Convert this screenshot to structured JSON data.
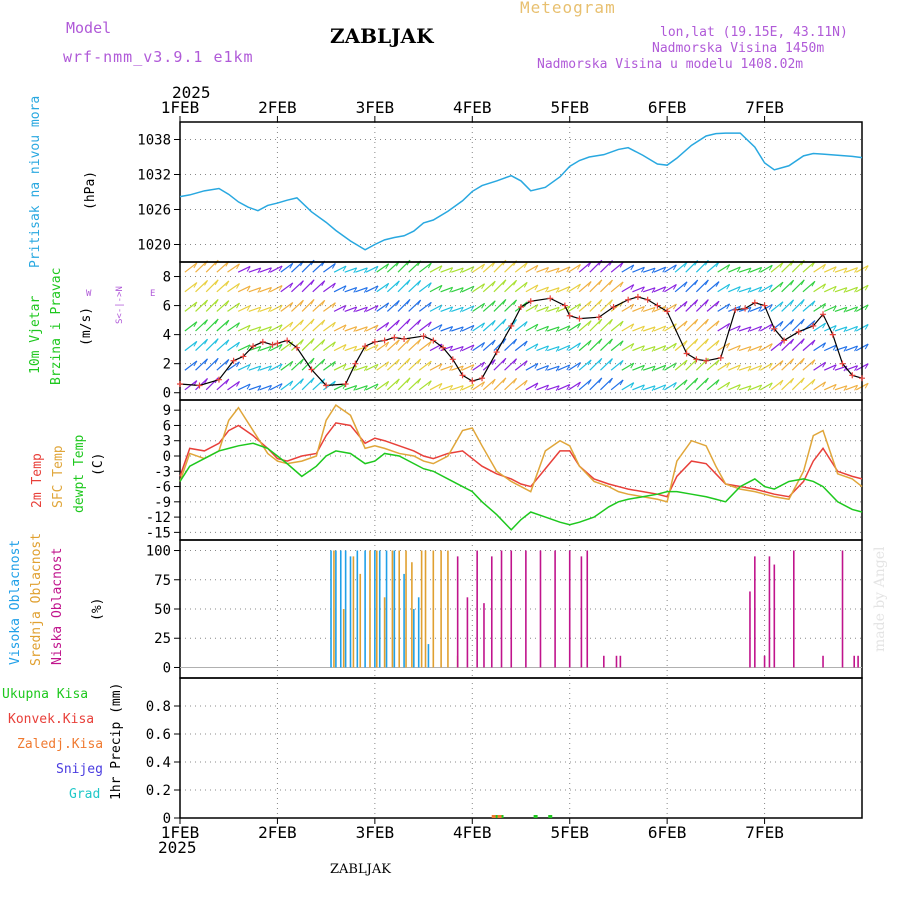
{
  "header": {
    "model_label": "Model",
    "model_name": "wrf-nmm_v3.9.1 e1km",
    "station": "ZABLJAK",
    "meteogram": "Meteogram",
    "lonlat": "lon,lat (19.15E, 43.11N)",
    "altitude": "Nadmorska Visina 1450m",
    "model_altitude": "Nadmorska Visina u modelu 1408.02m",
    "year": "2025",
    "footer_station": "ZABLJAK",
    "watermark": "made by Angel"
  },
  "colors": {
    "pressure": "#29a8e0",
    "temp2m": "#e8403a",
    "sfc": "#e0a63a",
    "dew": "#1ec81e",
    "high_cloud": "#20a0e8",
    "mid_cloud": "#e0a030",
    "low_cloud": "#c0148c",
    "purple_label": "#b05ad8",
    "meteogram_label": "#e8c070"
  },
  "panels": {
    "pressure": {
      "label": "Pritisak na nivou mora",
      "unit": "(hPa)",
      "yticks": [
        "1038",
        "1032",
        "1026",
        "1020"
      ]
    },
    "wind": {
      "label1": "10m Vjetar",
      "label2": "Brzina i Pravac",
      "unit": "(m/s)",
      "compass_ns": "S<-|->N",
      "compass_w": "W",
      "compass_e": "E",
      "yticks": [
        "8",
        "6",
        "4",
        "2",
        "0"
      ]
    },
    "temp": {
      "label1": "2m Temp",
      "label2": "SFC Temp",
      "label3": "dewpt Temp",
      "unit": "(C)",
      "yticks": [
        "9",
        "6",
        "3",
        "0",
        "-3",
        "-6",
        "-9",
        "-12",
        "-15"
      ]
    },
    "cloud": {
      "label1": "Visoka Oblacnost",
      "label2": "Srednja Oblacnost",
      "label3": "Niska Oblacnost",
      "unit": "(%)",
      "yticks": [
        "100",
        "75",
        "50",
        "25",
        "0"
      ]
    },
    "precip": {
      "legend": [
        "Ukupna Kisa",
        "Konvek.Kisa",
        "Zaledj.Kisa",
        "Snijeg",
        "Grad"
      ],
      "ylabel": "1hr Precip (mm)",
      "yticks": [
        "0.8",
        "0.6",
        "0.4",
        "0.2",
        "0"
      ]
    }
  },
  "x_axis": {
    "ticks": [
      "1FEB",
      "2FEB",
      "3FEB",
      "4FEB",
      "5FEB",
      "6FEB",
      "7FEB"
    ]
  },
  "chart_data": [
    {
      "type": "line",
      "title": "",
      "ylabel": "Pritisak na nivou mora (hPa)",
      "ylim": [
        1017,
        1041
      ],
      "x_unit": "days since 1FEB",
      "series": [
        {
          "name": "Pritisak na nivou mora",
          "x": [
            0,
            0.1,
            0.25,
            0.4,
            0.5,
            0.6,
            0.7,
            0.8,
            0.9,
            1.0,
            1.1,
            1.2,
            1.35,
            1.5,
            1.6,
            1.75,
            1.9,
            2.0,
            2.1,
            2.2,
            2.3,
            2.4,
            2.5,
            2.6,
            2.75,
            2.9,
            3.0,
            3.1,
            3.25,
            3.4,
            3.5,
            3.6,
            3.75,
            3.9,
            4.0,
            4.1,
            4.2,
            4.35,
            4.5,
            4.6,
            4.75,
            4.9,
            5.0,
            5.1,
            5.25,
            5.4,
            5.5,
            5.6,
            5.75,
            5.9,
            6.0,
            6.1,
            6.25,
            6.4,
            6.5,
            6.6,
            6.75,
            6.9,
            7.0
          ],
          "y": [
            1028.2,
            1028.5,
            1029.2,
            1029.6,
            1028.6,
            1027.3,
            1026.4,
            1025.8,
            1026.7,
            1027.1,
            1027.6,
            1028.0,
            1025.6,
            1023.8,
            1022.4,
            1020.6,
            1019.1,
            1020.0,
            1020.8,
            1021.2,
            1021.5,
            1022.3,
            1023.7,
            1024.2,
            1025.7,
            1027.5,
            1029.1,
            1030.1,
            1030.9,
            1031.8,
            1030.9,
            1029.2,
            1029.8,
            1031.6,
            1033.4,
            1034.4,
            1035.0,
            1035.4,
            1036.3,
            1036.6,
            1035.3,
            1033.8,
            1033.6,
            1034.8,
            1037.0,
            1038.6,
            1039.0,
            1039.1,
            1039.1,
            1036.7,
            1034.0,
            1032.8,
            1033.5,
            1035.2,
            1035.6,
            1035.5,
            1035.3,
            1035.1,
            1034.9
          ]
        }
      ]
    },
    {
      "type": "line",
      "title": "",
      "ylabel": "10m Vjetar Brzina i Pravac (m/s)",
      "ylim": [
        -0.5,
        9
      ],
      "x_unit": "days since 1FEB",
      "series": [
        {
          "name": "10m Vjetar",
          "x": [
            0,
            0.2,
            0.4,
            0.55,
            0.65,
            0.75,
            0.85,
            0.95,
            1.0,
            1.1,
            1.2,
            1.35,
            1.5,
            1.7,
            1.8,
            1.9,
            2.0,
            2.1,
            2.2,
            2.3,
            2.5,
            2.6,
            2.7,
            2.8,
            2.9,
            3.0,
            3.1,
            3.25,
            3.4,
            3.5,
            3.6,
            3.8,
            3.95,
            4.0,
            4.1,
            4.3,
            4.45,
            4.6,
            4.7,
            4.8,
            4.9,
            5.0,
            5.2,
            5.3,
            5.4,
            5.55,
            5.7,
            5.8,
            5.9,
            6.0,
            6.1,
            6.2,
            6.35,
            6.5,
            6.6,
            6.7,
            6.8,
            6.9,
            7.0
          ],
          "y": [
            0.6,
            0.5,
            0.9,
            2.2,
            2.5,
            3.2,
            3.5,
            3.3,
            3.4,
            3.6,
            3.1,
            1.6,
            0.5,
            0.6,
            2.0,
            3.2,
            3.5,
            3.6,
            3.8,
            3.7,
            3.9,
            3.6,
            3.1,
            2.3,
            1.2,
            0.8,
            1.0,
            2.8,
            4.6,
            5.9,
            6.3,
            6.5,
            6.0,
            5.3,
            5.1,
            5.2,
            5.9,
            6.4,
            6.6,
            6.4,
            6.0,
            5.6,
            2.7,
            2.3,
            2.2,
            2.4,
            5.7,
            5.8,
            6.2,
            6.0,
            4.4,
            3.6,
            4.2,
            4.6,
            5.4,
            4.0,
            2.0,
            1.2,
            1.0
          ]
        }
      ]
    },
    {
      "type": "line",
      "title": "",
      "ylabel": "Temp (C)",
      "ylim": [
        -16.5,
        11
      ],
      "x_unit": "days since 1FEB",
      "x": [
        0,
        0.1,
        0.25,
        0.4,
        0.5,
        0.6,
        0.75,
        0.9,
        1.0,
        1.1,
        1.25,
        1.4,
        1.5,
        1.6,
        1.75,
        1.9,
        2.0,
        2.1,
        2.25,
        2.4,
        2.5,
        2.6,
        2.75,
        2.9,
        3.0,
        3.1,
        3.25,
        3.4,
        3.5,
        3.6,
        3.75,
        3.9,
        4.0,
        4.1,
        4.25,
        4.4,
        4.5,
        4.6,
        4.75,
        4.9,
        5.0,
        5.1,
        5.25,
        5.4,
        5.5,
        5.6,
        5.75,
        5.9,
        6.0,
        6.1,
        6.25,
        6.4,
        6.5,
        6.6,
        6.75,
        6.9,
        7.0
      ],
      "series": [
        {
          "name": "2m Temp",
          "y": [
            -4.0,
            1.5,
            1.0,
            2.5,
            5.0,
            6.0,
            4.0,
            1.5,
            -0.5,
            -1.0,
            0.0,
            0.5,
            4.0,
            6.5,
            6.0,
            2.5,
            3.5,
            3.0,
            2.0,
            1.0,
            0.0,
            -0.5,
            0.5,
            1.0,
            -0.5,
            -2.0,
            -3.5,
            -4.5,
            -5.5,
            -6.0,
            -2.5,
            1.0,
            1.0,
            -2.0,
            -4.5,
            -5.5,
            -6.0,
            -6.5,
            -7.0,
            -7.5,
            -8.0,
            -4.0,
            -1.0,
            -1.5,
            -3.5,
            -5.5,
            -6.0,
            -6.5,
            -7.0,
            -7.5,
            -8.0,
            -5.0,
            -1.0,
            1.5,
            -3.0,
            -4.0,
            -4.5
          ]
        },
        {
          "name": "SFC Temp",
          "y": [
            -5.0,
            0.5,
            -0.5,
            1.0,
            7.0,
            9.5,
            5.0,
            0.5,
            -1.0,
            -1.5,
            -1.0,
            0.0,
            7.0,
            10.0,
            8.0,
            1.5,
            2.0,
            1.5,
            0.5,
            0.0,
            -1.0,
            -1.5,
            0.0,
            5.0,
            5.5,
            2.0,
            -3.0,
            -5.0,
            -6.0,
            -7.0,
            1.0,
            3.0,
            2.0,
            -2.0,
            -5.0,
            -6.0,
            -7.0,
            -7.5,
            -8.0,
            -8.5,
            -9.0,
            -1.0,
            3.0,
            2.0,
            -2.0,
            -5.5,
            -6.5,
            -7.0,
            -7.5,
            -8.0,
            -8.5,
            -3.0,
            4.0,
            5.0,
            -3.5,
            -4.5,
            -6.0
          ]
        },
        {
          "name": "dewpt Temp",
          "y": [
            -5.0,
            -2.0,
            -0.5,
            1.0,
            1.5,
            2.0,
            2.5,
            1.5,
            0.0,
            -1.5,
            -4.0,
            -2.0,
            0.0,
            1.0,
            0.5,
            -1.5,
            -1.0,
            0.5,
            0.0,
            -1.5,
            -2.5,
            -3.0,
            -4.5,
            -6.0,
            -7.0,
            -9.0,
            -11.5,
            -14.5,
            -12.5,
            -11.0,
            -12.0,
            -13.0,
            -13.5,
            -13.0,
            -12.0,
            -10.0,
            -9.0,
            -8.5,
            -8.0,
            -7.5,
            -7.0,
            -7.0,
            -7.5,
            -8.0,
            -8.5,
            -9.0,
            -6.0,
            -4.5,
            -6.0,
            -6.5,
            -5.0,
            -4.5,
            -5.0,
            -6.0,
            -9.0,
            -10.5,
            -11.0
          ]
        }
      ]
    },
    {
      "type": "bar",
      "title": "",
      "ylabel": "Oblacnost (%)",
      "ylim": [
        0,
        100
      ],
      "x_unit": "days since 1FEB",
      "series": [
        {
          "name": "Visoka Oblacnost",
          "x": [
            1.55,
            1.6,
            1.65,
            1.7,
            1.75,
            1.82,
            1.9,
            2.0,
            2.05,
            2.12,
            2.2,
            2.3,
            2.4,
            2.45,
            2.55
          ],
          "y": [
            100,
            100,
            100,
            100,
            95,
            100,
            100,
            100,
            100,
            100,
            100,
            80,
            50,
            60,
            20
          ]
        },
        {
          "name": "Srednja Oblacnost",
          "x": [
            1.58,
            1.68,
            1.78,
            1.85,
            1.95,
            2.02,
            2.1,
            2.18,
            2.25,
            2.32,
            2.38,
            2.48,
            2.52,
            2.6,
            2.68,
            2.75,
            2.85
          ],
          "y": [
            100,
            50,
            95,
            80,
            100,
            100,
            60,
            100,
            100,
            100,
            90,
            100,
            100,
            100,
            100,
            100,
            10
          ]
        },
        {
          "name": "Niska Oblacnost",
          "x": [
            2.85,
            2.95,
            3.05,
            3.12,
            3.2,
            3.3,
            3.4,
            3.55,
            3.7,
            3.85,
            4.0,
            4.12,
            4.18,
            4.35,
            4.48,
            4.52,
            5.85,
            5.9,
            6.0,
            6.05,
            6.1,
            6.3,
            6.6,
            6.8,
            6.92,
            6.96
          ],
          "y": [
            95,
            60,
            100,
            55,
            95,
            100,
            100,
            100,
            100,
            100,
            100,
            95,
            100,
            10,
            10,
            10,
            65,
            95,
            10,
            95,
            88,
            100,
            10,
            100,
            10,
            10
          ]
        }
      ]
    },
    {
      "type": "bar",
      "title": "",
      "ylabel": "1hr Precip (mm)",
      "ylim": [
        0,
        1
      ],
      "x_unit": "days since 1FEB",
      "series": [
        {
          "name": "Ukupna Kisa",
          "x": [
            3.25,
            3.3,
            3.65,
            3.8
          ],
          "y": [
            0.01,
            0.01,
            0.005,
            0.02
          ]
        },
        {
          "name": "Konvek.Kisa",
          "x": [],
          "y": []
        },
        {
          "name": "Zaledj.Kisa",
          "x": [
            3.22,
            3.28
          ],
          "y": [
            0.01,
            0.01
          ]
        },
        {
          "name": "Snijeg",
          "x": [],
          "y": []
        },
        {
          "name": "Grad",
          "x": [],
          "y": []
        }
      ]
    }
  ]
}
